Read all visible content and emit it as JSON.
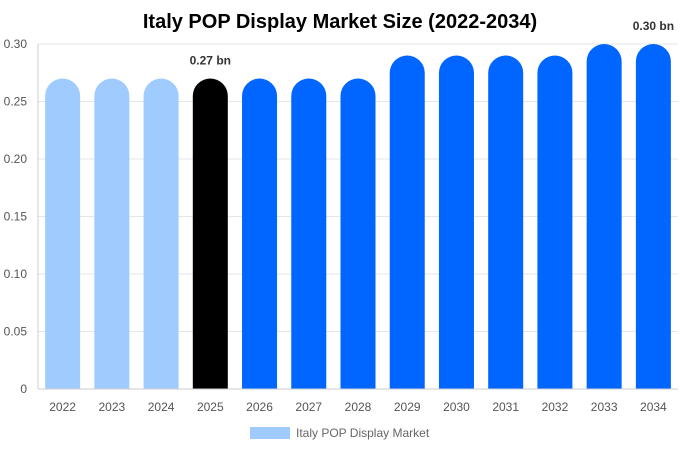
{
  "chart_data": {
    "type": "bar",
    "title": "Italy POP Display Market Size (2022-2034)",
    "xlabel": "",
    "ylabel": "",
    "categories": [
      "2022",
      "2023",
      "2024",
      "2025",
      "2026",
      "2027",
      "2028",
      "2029",
      "2030",
      "2031",
      "2032",
      "2033",
      "2034"
    ],
    "series": [
      {
        "name": "Italy POP Display Market",
        "values": [
          0.27,
          0.27,
          0.27,
          0.27,
          0.27,
          0.27,
          0.27,
          0.29,
          0.29,
          0.29,
          0.29,
          0.3,
          0.3
        ]
      }
    ],
    "ylim": [
      0,
      0.3
    ],
    "yticks": [
      "0",
      "0.05",
      "0.10",
      "0.15",
      "0.20",
      "0.25",
      "0.30"
    ],
    "data_labels": [
      {
        "index": 3,
        "text": "0.27 bn"
      },
      {
        "index": 12,
        "text": "0.30 bn"
      }
    ],
    "colors": {
      "historical": "#a0cbff",
      "current": "#000000",
      "forecast": "#0066ff",
      "axis": "#cccccc",
      "grid": "#e6e6e6"
    },
    "bar_color_groups": [
      "historical",
      "historical",
      "historical",
      "current",
      "forecast",
      "forecast",
      "forecast",
      "forecast",
      "forecast",
      "forecast",
      "forecast",
      "forecast",
      "forecast"
    ],
    "grid": true,
    "legend": "bottom-center"
  }
}
